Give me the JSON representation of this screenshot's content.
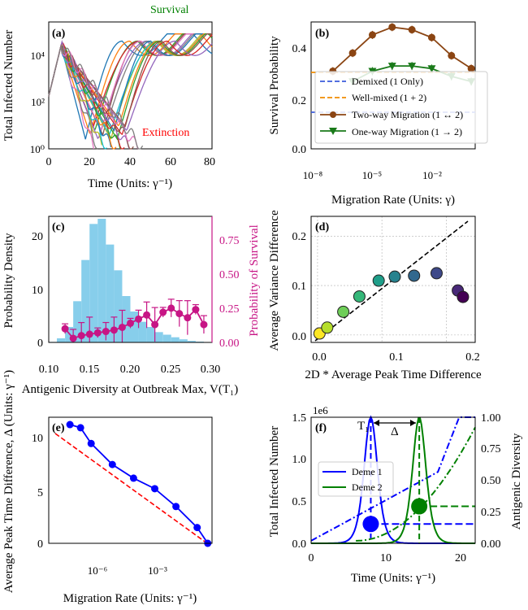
{
  "figure": {
    "panel_a": {
      "label": "(a)",
      "xlabel": "Time (Units: γ⁻¹)",
      "ylabel": "Total Infected Number",
      "xticks": [
        "0",
        "20",
        "40",
        "60",
        "80"
      ],
      "yticks": [
        "10⁰",
        "10²",
        "10⁴"
      ],
      "annotations": {
        "survival": "Survival",
        "extinction": "Extinction"
      },
      "colors": {
        "survival": "#008000",
        "extinction": "#ff0000"
      }
    },
    "panel_b": {
      "label": "(b)",
      "xlabel": "Migration Rate (Units: γ)",
      "ylabel": "Survival Probability",
      "xticks": [
        "10⁻⁸",
        "10⁻⁵",
        "10⁻²"
      ],
      "yticks": [
        "0.0",
        "0.2",
        "0.4"
      ],
      "legend": [
        "Demixed (1 Only)",
        "Well-mixed (1 + 2)",
        "Two-way Migration (1 ↔ 2)",
        "One-way Migration (1 → 2)"
      ]
    },
    "panel_c": {
      "label": "(c)",
      "xlabel": "Antigenic Diversity at Outbreak Max, V(T₁)",
      "ylabel": "Probability Density",
      "ylabel_right": "Probability of Survival",
      "xticks": [
        "0.10",
        "0.15",
        "0.20",
        "0.25",
        "0.30"
      ],
      "yticks": [
        "0",
        "10",
        "20"
      ],
      "yticks_right": [
        "0.00",
        "0.25",
        "0.50",
        "0.75"
      ]
    },
    "panel_d": {
      "label": "(d)",
      "xlabel": "2D * Average Peak Time Difference",
      "ylabel": "Average Variance Difference",
      "xticks": [
        "0.0",
        "0.1",
        "0.2"
      ],
      "yticks": [
        "0.0",
        "0.1",
        "0.2"
      ]
    },
    "panel_e": {
      "label": "(e)",
      "xlabel": "Migration Rate (Units: γ⁻¹)",
      "ylabel": "Average Peak Time Difference, Δ (Units: γ⁻¹)",
      "xticks": [
        "10⁻⁶",
        "10⁻³"
      ],
      "yticks": [
        "0",
        "5",
        "10"
      ]
    },
    "panel_f": {
      "label": "(f)",
      "xlabel": "Time (Units: γ⁻¹)",
      "ylabel": "Total Infected Number",
      "ylabel_right": "Antigenic Diversity",
      "offset_text": "1e6",
      "xticks": [
        "0",
        "10",
        "20"
      ],
      "yticks": [
        "0.0",
        "0.5",
        "1.0",
        "1.5"
      ],
      "yticks_right": [
        "0.00",
        "0.25",
        "0.50",
        "0.75",
        "1.00"
      ],
      "legend": [
        "Deme 1",
        "Deme 2"
      ],
      "t1_label": "T₁",
      "delta_label": "Δ"
    }
  },
  "chart_data": [
    {
      "type": "line",
      "panel": "(a)",
      "description_series": "many stochastic trajectories (log scale)",
      "xlim": [
        0,
        80
      ],
      "ylim_log10": [
        0,
        5.3
      ],
      "peak": {
        "x": 6,
        "y": 20000
      },
      "survival_count": 16,
      "extinction_count": 12
    },
    {
      "type": "line",
      "panel": "(b)",
      "x_log10": [
        -9,
        -8,
        -7,
        -6,
        -5,
        -4,
        -3,
        -2,
        -1
      ],
      "series": [
        {
          "name": "Two-way Migration (1 ↔ 2)",
          "color": "#8B4513",
          "marker": "circle",
          "x_log10": [
            -8,
            -7,
            -6,
            -5,
            -4,
            -3,
            -2,
            -1
          ],
          "values": [
            0.3,
            0.37,
            0.44,
            0.47,
            0.46,
            0.43,
            0.36,
            0.31
          ]
        },
        {
          "name": "One-way Migration (1 → 2)",
          "color": "#1a7a1a",
          "marker": "triangle-down",
          "x_log10": [
            -7,
            -6,
            -5,
            -4,
            -3,
            -2,
            -1
          ],
          "values": [
            0.26,
            0.3,
            0.32,
            0.32,
            0.31,
            0.28,
            0.26
          ]
        }
      ],
      "hlines": [
        {
          "name": "Demixed (1 Only)",
          "value": 0.145,
          "color": "#3b5bdb"
        },
        {
          "name": "Well-mixed (1 + 2)",
          "value": 0.3,
          "color": "#f08c00"
        }
      ],
      "ylim": [
        0,
        0.49
      ]
    },
    {
      "type": "bar",
      "panel": "(c)",
      "bin_start": 0.1,
      "bin_width": 0.01,
      "values": [
        0.1,
        0.8,
        3,
        8,
        16,
        23,
        24,
        19,
        14,
        9,
        6,
        4,
        3,
        2,
        1.5,
        1,
        0.6,
        0.3,
        0.15,
        0.05
      ],
      "xlim": [
        0.1,
        0.3
      ],
      "ylim": [
        0,
        24
      ],
      "survival": {
        "x": [
          0.12,
          0.13,
          0.14,
          0.15,
          0.16,
          0.17,
          0.18,
          0.19,
          0.2,
          0.21,
          0.22,
          0.23,
          0.24,
          0.25,
          0.26,
          0.27,
          0.28,
          0.29
        ],
        "values": [
          0.1,
          0.03,
          0.05,
          0.06,
          0.07,
          0.08,
          0.09,
          0.11,
          0.14,
          0.17,
          0.2,
          0.13,
          0.22,
          0.25,
          0.21,
          0.18,
          0.24,
          0.13
        ],
        "ylim": [
          0,
          0.92
        ],
        "color": "#c71585"
      }
    },
    {
      "type": "scatter",
      "panel": "(d)",
      "x": [
        0.003,
        0.015,
        0.04,
        0.065,
        0.095,
        0.12,
        0.15,
        0.185,
        0.218,
        0.226
      ],
      "y": [
        0.003,
        0.015,
        0.047,
        0.078,
        0.11,
        0.118,
        0.12,
        0.125,
        0.09,
        0.077
      ],
      "xlim": [
        -0.01,
        0.245
      ],
      "ylim": [
        -0.015,
        0.24
      ],
      "grid": true,
      "reference_line": "y = x (dashed black)"
    },
    {
      "type": "line",
      "panel": "(e)",
      "x_log10": [
        -7,
        -6.5,
        -6,
        -5,
        -4,
        -3,
        -2,
        -1,
        -0.5
      ],
      "values": [
        11.3,
        11,
        9.5,
        7.5,
        6.2,
        5.2,
        3.5,
        1.5,
        0
      ],
      "xlim_log10": [
        -8,
        -0.3
      ],
      "ylim": [
        0,
        12
      ],
      "theory_line": "red dashed",
      "color": "#0000ff"
    },
    {
      "type": "line",
      "panel": "(f)",
      "xlim": [
        0,
        22
      ],
      "ylim": [
        0,
        1.5
      ],
      "ylim_right": [
        0,
        1.0
      ],
      "series": [
        {
          "name": "Deme 1",
          "color": "#0000ff",
          "peak_x": 8,
          "peak_y": 1.5
        },
        {
          "name": "Deme 2",
          "color": "#008000",
          "peak_x": 14.5,
          "peak_y": 1.5
        }
      ],
      "markers": [
        {
          "x": 8,
          "y": 0.23,
          "color": "#0000ff"
        },
        {
          "x": 14.5,
          "y": 0.44,
          "color": "#008000"
        }
      ]
    }
  ]
}
